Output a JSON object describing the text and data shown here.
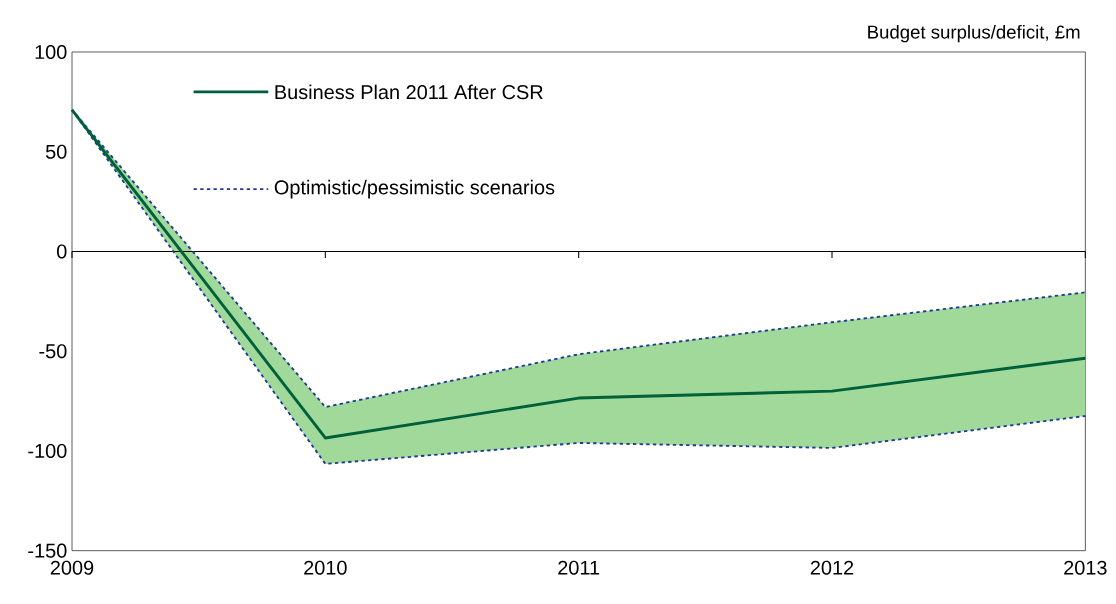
{
  "chart_data": {
    "type": "line",
    "ylabel": "Budget surplus/deficit, £m",
    "x": [
      2009,
      2010,
      2011,
      2012,
      2013
    ],
    "series": [
      {
        "name": "Business Plan 2011 After CSR",
        "color": "#00603a",
        "values": [
          71,
          -93.5,
          -73.5,
          -70,
          -53.5
        ],
        "lower": [
          71,
          -106.5,
          -96,
          -98.5,
          -82.5
        ],
        "upper": [
          71,
          -78,
          -51.5,
          -35.5,
          -20.5
        ]
      },
      {
        "name": "Optimistic/pessimistic scenarios",
        "color": "#1f3a93",
        "line_style": "dotted",
        "values": [
          71,
          -78,
          -51.5,
          -35.5,
          -20.5
        ]
      },
      {
        "color": "#1f3a93",
        "line_style": "dotted",
        "values": [
          71,
          -106.5,
          -96,
          -98.5,
          -82.5
        ]
      }
    ],
    "xlim": [
      2009,
      2013
    ],
    "xticks": [
      2009,
      2010,
      2011,
      2012,
      2013
    ],
    "ylim": [
      -150,
      100
    ],
    "yticks": [
      -150,
      -100,
      -50,
      0,
      50,
      100
    ],
    "ref_lines": [
      {
        "axis": "y",
        "value": 0,
        "color": "#000000"
      }
    ],
    "grid": false,
    "legend": "top left"
  }
}
